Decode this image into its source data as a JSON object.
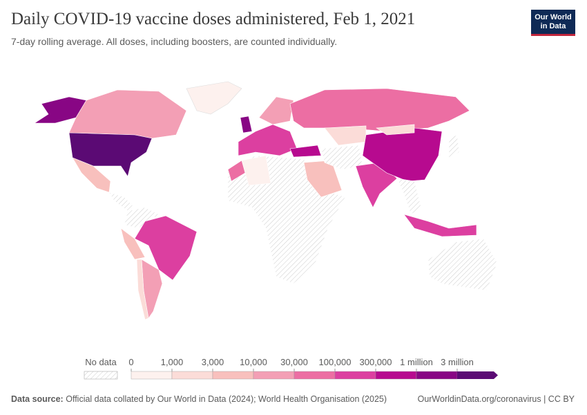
{
  "header": {
    "title": "Daily COVID-19 vaccine doses administered, Feb 1, 2021",
    "subtitle": "7-day rolling average. All doses, including boosters, are counted individually.",
    "logo": [
      "Our World",
      "in Data"
    ]
  },
  "legend": {
    "no_data": "No data",
    "ticks": [
      "0",
      "1,000",
      "3,000",
      "10,000",
      "30,000",
      "100,000",
      "300,000",
      "1 million",
      "3 million"
    ],
    "colors": [
      "#fdf1ee",
      "#fbdcd8",
      "#f8c0bd",
      "#f39fb5",
      "#ec6ea3",
      "#dc3fa0",
      "#b70a8f",
      "#880684",
      "#5b0a74"
    ]
  },
  "footer": {
    "source_label": "Data source:",
    "source": "Official data collated by Our World in Data (2024); World Health Organisation (2025)",
    "link": "OurWorldinData.org/coronavirus | CC BY"
  }
}
